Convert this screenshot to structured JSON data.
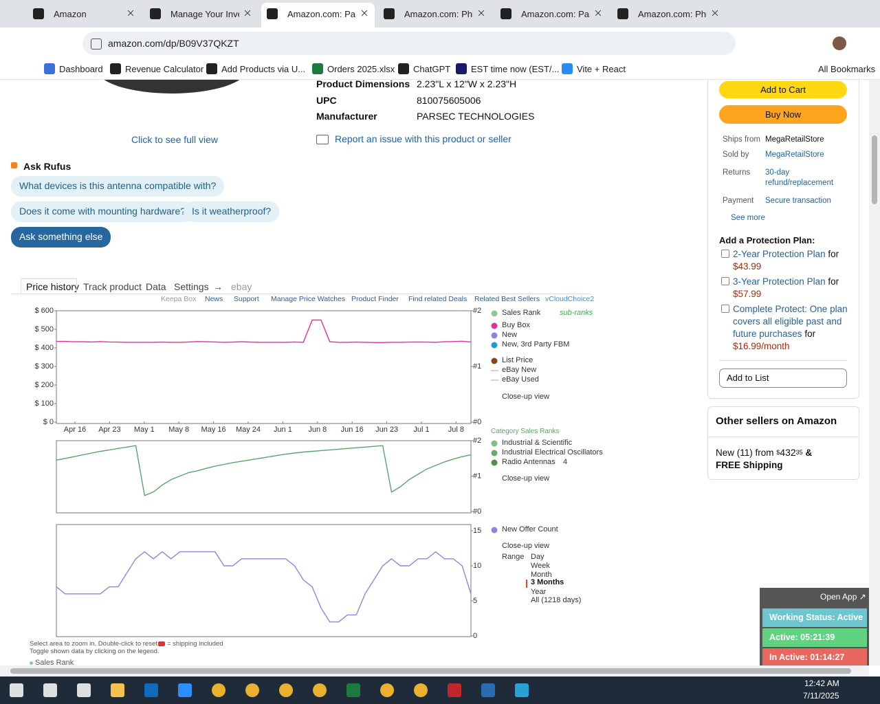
{
  "browser": {
    "tabs": [
      "Amazon",
      "Manage Your Inve",
      "Amazon.com: Pars",
      "Amazon.com: Phil",
      "Amazon.com: Pars",
      "Amazon.com: Phil"
    ],
    "url": "amazon.com/dp/B09V37QKZT",
    "bookmarks": [
      "Dashboard",
      "Revenue Calculator",
      "Add Products via U...",
      "Orders 2025.xlsx",
      "ChatGPT",
      "EST time now (EST/...",
      "Vite + React"
    ],
    "all_bookmarks": "All Bookmarks"
  },
  "product": {
    "details": [
      [
        "Product Dimensions",
        "2.23\"L x 12\"W x 2.23\"H"
      ],
      [
        "UPC",
        "810075605006"
      ],
      [
        "Manufacturer",
        "PARSEC TECHNOLOGIES"
      ]
    ],
    "full_view": "Click to see full view",
    "report": "Report an issue with this product or seller"
  },
  "rufus": {
    "title": "Ask Rufus",
    "questions": [
      "What devices is this antenna compatible with?",
      "Does it come with mounting hardware?",
      "Is it weatherproof?"
    ],
    "ask": "Ask something else"
  },
  "keepa": {
    "tabs": [
      "Price history",
      "Track product",
      "Data",
      "Settings",
      "→",
      "ebay"
    ],
    "links": [
      "Keepa Box",
      "News",
      "Support",
      "Manage Price Watches",
      "Product Finder",
      "Find related Deals",
      "Related Best Sellers",
      "vCloudChoice2"
    ],
    "price_chart": {
      "type": "line",
      "xticks": [
        "Apr 16",
        "Apr 23",
        "May 1",
        "May 8",
        "May 16",
        "May 24",
        "Jun 1",
        "Jun 8",
        "Jun 16",
        "Jun 23",
        "Jul 1",
        "Jul 8"
      ],
      "ylim": [
        0,
        600
      ],
      "yticks": [
        {
          "value": 0,
          "label": "$ 0"
        },
        {
          "value": 100,
          "label": "$ 100"
        },
        {
          "value": 200,
          "label": "$ 200"
        },
        {
          "value": 300,
          "label": "$ 300"
        },
        {
          "value": 400,
          "label": "$ 400"
        },
        {
          "value": 500,
          "label": "$ 500"
        },
        {
          "value": 600,
          "label": "$ 600"
        }
      ],
      "y2lim": [
        0,
        2
      ],
      "y2ticks": [
        {
          "value": 0,
          "label": "#0"
        },
        {
          "value": 1,
          "label": "#1"
        },
        {
          "value": 2,
          "label": "#2"
        }
      ],
      "series": [
        {
          "name": "Buy Box",
          "color": "#e0309c",
          "values": [
            435,
            435,
            433,
            433,
            432,
            434,
            432,
            431,
            430,
            430,
            430,
            430,
            431,
            430,
            430,
            432,
            434,
            433,
            432,
            430,
            431,
            433,
            431,
            430,
            430,
            430,
            430,
            432,
            430,
            550,
            550,
            433,
            430,
            430,
            431,
            430,
            429,
            429,
            430,
            430,
            431,
            432,
            431,
            430,
            433,
            434,
            436,
            432
          ]
        }
      ],
      "legend": [
        {
          "name": "Sales Rank",
          "color": "#8fc79a"
        },
        {
          "name": "sub-ranks",
          "color": "#3fae49"
        },
        {
          "name": "New",
          "color": "#8888dd"
        },
        {
          "name": "New, 3rd Party FBM",
          "color": "#1e9bd7"
        },
        {
          "name": "List Price",
          "color": "#8b4513"
        },
        {
          "name": "eBay New",
          "color": "#aaaaaa"
        },
        {
          "name": "eBay Used",
          "color": "#aaaaaa"
        }
      ],
      "closeup": "Close-up view"
    },
    "rank_chart": {
      "type": "line",
      "title": "Category Sales Ranks",
      "ylim": [
        0,
        2
      ],
      "yticks": [
        {
          "value": 0,
          "label": "#0"
        },
        {
          "value": 1,
          "label": "#1"
        },
        {
          "value": 2,
          "label": "#2"
        }
      ],
      "series": [
        {
          "color": "#5aa469",
          "values": [
            1.45,
            1.5,
            1.55,
            1.6,
            1.65,
            1.7,
            1.74,
            1.78,
            1.82,
            1.86,
            0.45,
            0.55,
            0.75,
            0.9,
            1.0,
            1.1,
            1.15,
            1.22,
            1.28,
            1.33,
            1.38,
            1.42,
            1.46,
            1.5,
            1.54,
            1.58,
            1.62,
            1.65,
            1.68,
            1.7,
            1.72,
            1.74,
            1.76,
            1.78,
            1.8,
            1.82,
            1.84,
            1.86,
            0.55,
            0.7,
            0.9,
            1.05,
            1.2,
            1.3,
            1.4,
            1.48,
            1.55,
            1.6
          ]
        }
      ],
      "legend": [
        {
          "name": "Industrial & Scientific",
          "color": "#7fbf7f"
        },
        {
          "name": "Industrial Electrical Oscillators",
          "color": "#6aa86a"
        },
        {
          "name": "Radio Antennas",
          "color": "#4f8f4f"
        }
      ],
      "rank_badge": "4",
      "closeup": "Close-up view"
    },
    "offer_chart": {
      "type": "line",
      "ylim": [
        0,
        15
      ],
      "yticks": [
        0,
        5,
        10,
        15
      ],
      "series": [
        {
          "name": "New Offer Count",
          "color": "#8888dd",
          "values": [
            7,
            6,
            6,
            6,
            6,
            6,
            7,
            7,
            9,
            11,
            12,
            11,
            12,
            11,
            12,
            12,
            12,
            12,
            12,
            10,
            10,
            11,
            11,
            11,
            11,
            11,
            11,
            10,
            8,
            7,
            4,
            2,
            2,
            3,
            3,
            6,
            8,
            10,
            11,
            10,
            10,
            11,
            11,
            12,
            11,
            11,
            10,
            6
          ]
        }
      ],
      "closeup": "Close-up view",
      "range": {
        "label": "Range",
        "options": [
          "Day",
          "Week",
          "Month",
          "3 Months",
          "Year",
          "All (1218 days)"
        ]
      }
    },
    "hints": [
      "Select area to zoom in. Double-click to reset.",
      "= shipping included",
      "Toggle shown data by clicking on the legend."
    ],
    "footer_legend": "Sales Rank"
  },
  "buybox": {
    "add_to_cart": "Add to Cart",
    "buy_now": "Buy Now",
    "info": [
      [
        "Ships from",
        "MegaRetailStore"
      ],
      [
        "Sold by",
        "MegaRetailStore"
      ],
      [
        "Returns",
        "30-day refund/replacement"
      ],
      [
        "Payment",
        "Secure transaction"
      ]
    ],
    "see_more": "See more"
  },
  "protection": {
    "title": "Add a Protection Plan:",
    "plans": [
      {
        "name": "2-Year Protection Plan",
        "suffix": "for",
        "price": "$43.99"
      },
      {
        "name": "3-Year Protection Plan",
        "suffix": "for",
        "price": "$57.99"
      },
      {
        "name": "Complete Protect: One plan covers all eligible past and future purchases",
        "suffix": "for",
        "price": "$16.99/month"
      }
    ],
    "add_to_list": "Add to List"
  },
  "other_sellers": {
    "title": "Other sellers on Amazon",
    "offer": "New (11) from",
    "symbol": "$",
    "whole": "432",
    "fraction": "35",
    "shipping": "& FREE Shipping"
  },
  "widget": {
    "open": "Open App ↗",
    "status": "Working Status: Active",
    "active": "Active: 05:21:39",
    "inactive": "In Active: 01:14:27"
  },
  "taskbar": {
    "time": "12:42 AM",
    "date": "7/11/2025"
  }
}
